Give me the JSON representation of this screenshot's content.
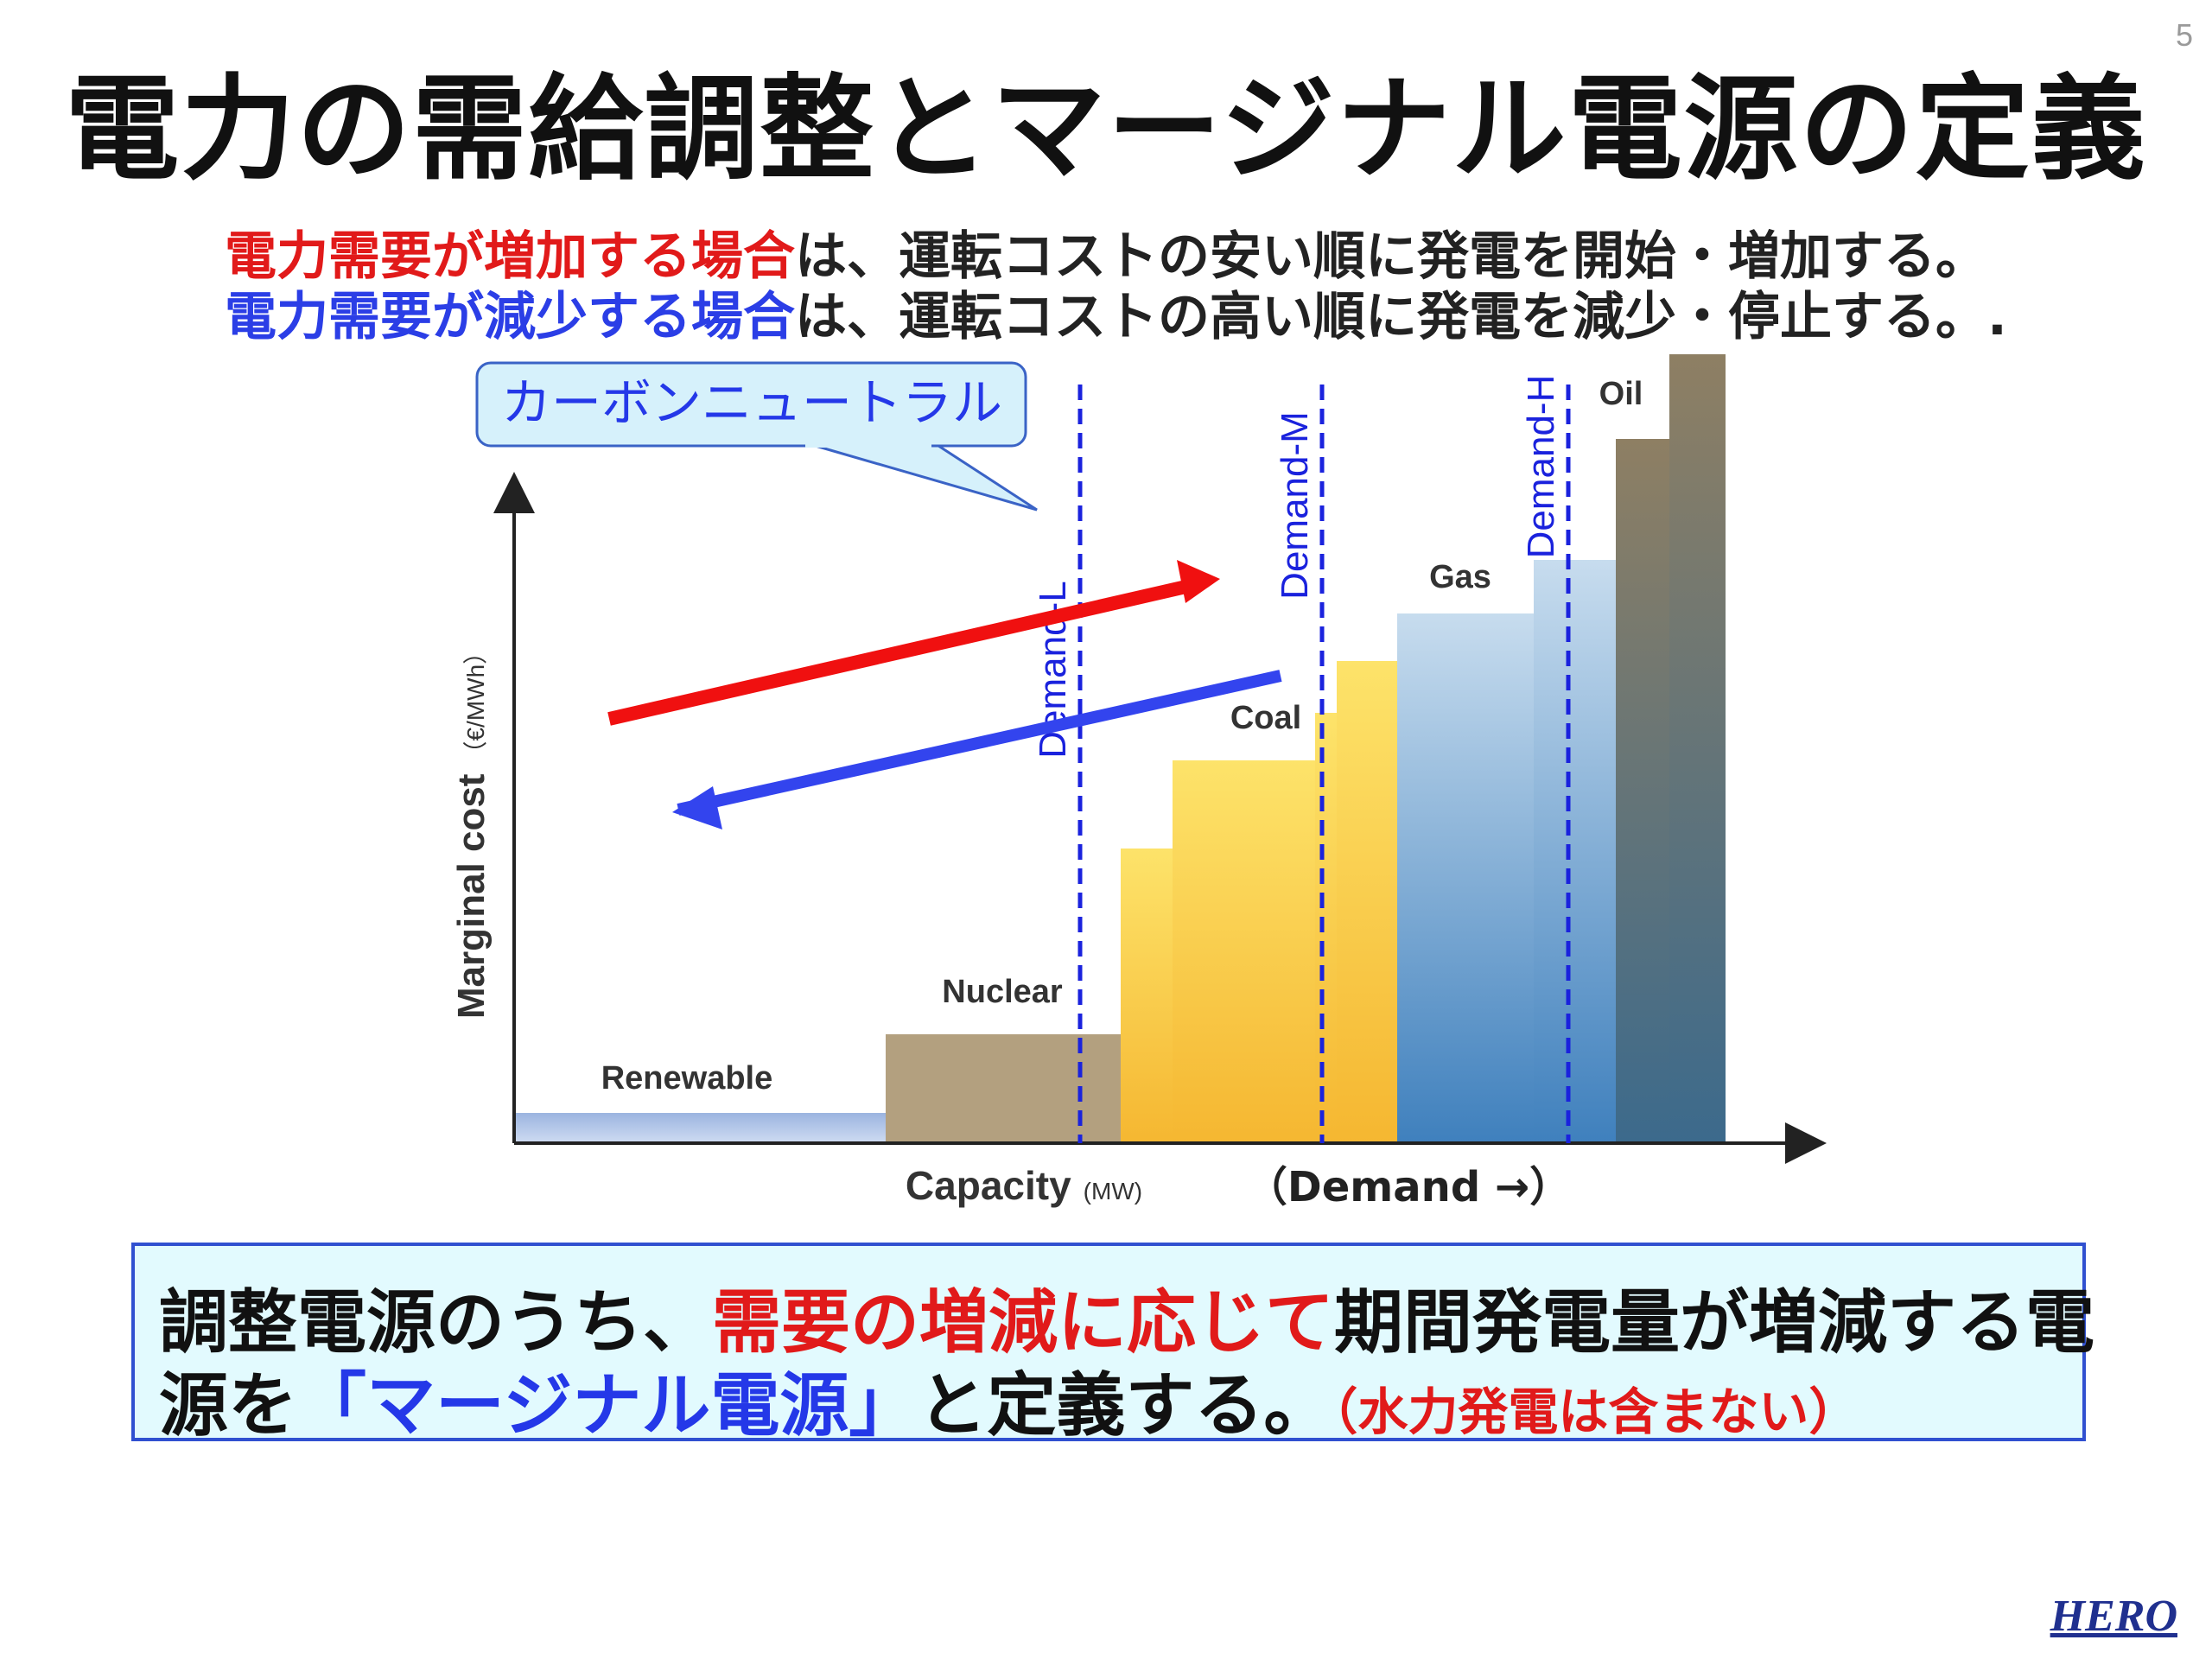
{
  "page": {
    "number": "5"
  },
  "title": "電力の需給調整とマージナル電源の定義",
  "subtitle": {
    "line1": {
      "highlight": "電力需要が増加する場合",
      "rest": "は、運転コストの安い順に発電を開始・増加する。"
    },
    "line2": {
      "highlight": "電力需要が減少する場合",
      "rest": "は、運転コストの高い順に発電を減少・停止する。."
    }
  },
  "diagram": {
    "callout": "カーボンニュートラル",
    "y_axis": {
      "label": "Marginal cost",
      "unit": "（€/MWh）"
    },
    "x_axis": {
      "label": "Capacity",
      "unit": "(MW)",
      "demand_note": "（Demand →）"
    },
    "demand_lines": [
      "Demand-L",
      "Demand-M",
      "Demand-H"
    ],
    "sources": [
      "Renewable",
      "Nuclear",
      "Coal",
      "Gas",
      "Oil"
    ],
    "arrows": {
      "increase_color": "#f01010",
      "decrease_color": "#3344ee"
    },
    "colors": {
      "renewable": "#8fa8d8",
      "nuclear": "#b09a78",
      "coal": "#f7c83a",
      "gas": "#9cc2e0",
      "oil": "#7f7460",
      "demand_line": "#1a22dd"
    }
  },
  "definition": {
    "line1": {
      "a": "調整電源のうち、",
      "highlight": "需要の増減に応じて",
      "b": "期間発電量が増減する電"
    },
    "line2": {
      "a": "源を",
      "highlight": "「マージナル電源」",
      "b": "と定義する。",
      "note": "（水力発電は含まない）"
    }
  },
  "logo": "HERO"
}
